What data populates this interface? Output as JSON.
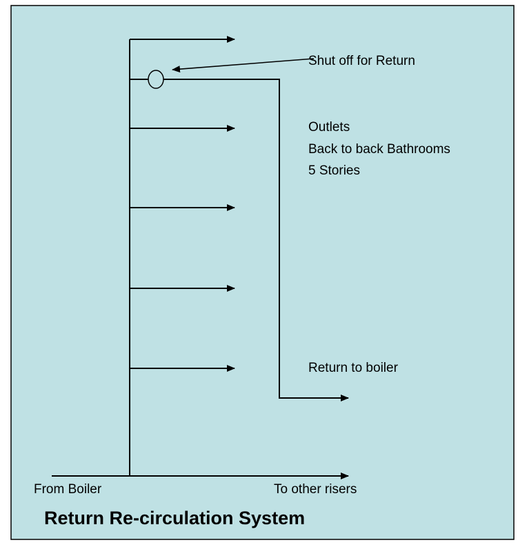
{
  "title": "Return Re-circulation System",
  "labels": {
    "shutoff": "Shut off for Return",
    "outlets": [
      "Outlets",
      "Back to back Bathrooms",
      "5 Stories"
    ],
    "return": "Return to boiler",
    "from": "From Boiler",
    "to": "To other risers"
  }
}
